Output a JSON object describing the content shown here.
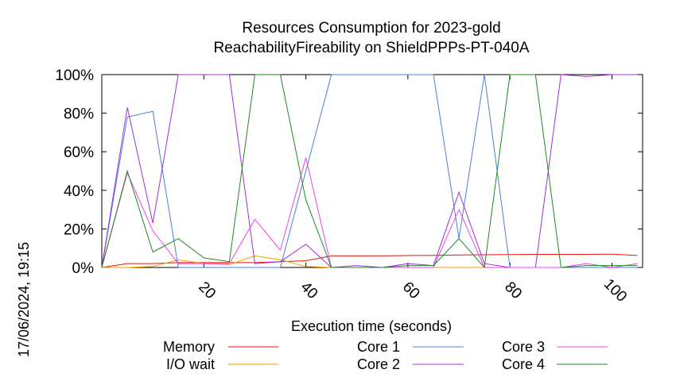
{
  "chart_data": {
    "type": "line",
    "title_line1": "Resources Consumption for 2023-gold",
    "title_line2": "ReachabilityFireability on ShieldPPPs-PT-040A",
    "xlabel": "Execution time (seconds)",
    "ylabel": "",
    "timestamp": "17/06/2024, 19:15",
    "xlim": [
      0,
      106
    ],
    "ylim": [
      0,
      100
    ],
    "x_ticks": [
      20,
      40,
      60,
      80,
      100
    ],
    "x_tick_labels": [
      "20",
      "40",
      "60",
      "80",
      "100"
    ],
    "y_ticks": [
      0,
      20,
      40,
      60,
      80,
      100
    ],
    "y_tick_labels": [
      "0%",
      "20%",
      "40%",
      "60%",
      "80%",
      "100%"
    ],
    "grid": false,
    "legend_position": "bottom",
    "series": [
      {
        "name": "Memory",
        "color": "#e8150f",
        "x": [
          0,
          5,
          10,
          15,
          20,
          25,
          30,
          35,
          40,
          45,
          50,
          55,
          60,
          65,
          70,
          75,
          80,
          85,
          90,
          95,
          100,
          105
        ],
        "y": [
          0,
          2,
          2,
          2.5,
          2.5,
          2.5,
          2.5,
          3,
          3.5,
          6,
          6,
          6,
          6.2,
          6.3,
          6.5,
          6.6,
          6.7,
          6.8,
          6.8,
          6.8,
          6.9,
          6.2
        ]
      },
      {
        "name": "I/O wait",
        "color": "#f5a000",
        "x": [
          0,
          5,
          10,
          15,
          20,
          25,
          30,
          35,
          40,
          45,
          50,
          55,
          60,
          65,
          70,
          75,
          80,
          85,
          90,
          95,
          100,
          105
        ],
        "y": [
          0,
          0,
          0.5,
          4,
          2,
          1.5,
          6,
          4,
          0.5,
          0,
          0,
          0,
          0,
          0,
          0,
          0,
          0,
          0,
          0,
          0,
          0,
          0
        ]
      },
      {
        "name": "Core 1",
        "color": "#4a7fd4",
        "x": [
          0,
          5,
          10,
          15,
          20,
          25,
          30,
          35,
          40,
          45,
          50,
          55,
          60,
          65,
          70,
          75,
          80,
          85,
          90,
          95,
          100,
          105
        ],
        "y": [
          0,
          78,
          81,
          0,
          0,
          0,
          0,
          0,
          50,
          100,
          100,
          100,
          100,
          100,
          15,
          100,
          0,
          0,
          0,
          0,
          0,
          0
        ]
      },
      {
        "name": "Core 2",
        "color": "#9b30d9",
        "x": [
          0,
          5,
          10,
          15,
          20,
          25,
          30,
          35,
          40,
          45,
          50,
          55,
          60,
          65,
          70,
          75,
          80,
          85,
          90,
          95,
          100,
          105
        ],
        "y": [
          0,
          83,
          23,
          100,
          100,
          100,
          2,
          3,
          12,
          0,
          1,
          0,
          2,
          1,
          39,
          2,
          0,
          0,
          100,
          99,
          100,
          100
        ]
      },
      {
        "name": "Core 3",
        "color": "#f040f0",
        "x": [
          0,
          5,
          10,
          15,
          20,
          25,
          30,
          35,
          40,
          45,
          50,
          55,
          60,
          65,
          70,
          75,
          80,
          85,
          90,
          95,
          100,
          105
        ],
        "y": [
          0,
          49,
          19,
          2,
          2,
          2,
          25,
          9,
          57,
          0,
          0,
          0,
          0,
          0,
          30,
          0,
          0,
          0,
          0,
          2,
          0,
          2
        ]
      },
      {
        "name": "Core 4",
        "color": "#1e8a1e",
        "x": [
          0,
          5,
          10,
          15,
          20,
          25,
          30,
          35,
          40,
          45,
          50,
          55,
          60,
          65,
          70,
          75,
          80,
          85,
          90,
          95,
          100,
          105
        ],
        "y": [
          0,
          50,
          8,
          15,
          5,
          3,
          100,
          100,
          35,
          0,
          0,
          0,
          1,
          1,
          15,
          0,
          100,
          100,
          0,
          1,
          1,
          1
        ]
      }
    ]
  }
}
